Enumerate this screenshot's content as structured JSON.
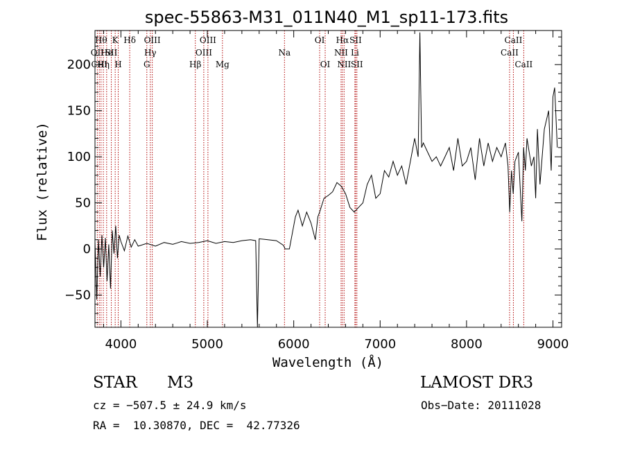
{
  "chart_data": {
    "type": "line",
    "title": "spec-55863-M31_011N40_M1_sp11-173.fits",
    "xlabel": "Wavelength (Å)",
    "ylabel": "Flux (relative)",
    "xlim": [
      3700,
      9100
    ],
    "ylim": [
      -85,
      237
    ],
    "x_ticks": [
      4000,
      5000,
      6000,
      7000,
      8000,
      9000
    ],
    "y_ticks": [
      -50,
      0,
      50,
      100,
      150,
      200
    ],
    "grid": false,
    "series": [
      {
        "color": "#000000",
        "x": [
          3700,
          3720,
          3740,
          3760,
          3780,
          3800,
          3820,
          3840,
          3860,
          3880,
          3900,
          3920,
          3940,
          3960,
          3980,
          4000,
          4040,
          4080,
          4120,
          4160,
          4200,
          4300,
          4400,
          4500,
          4600,
          4700,
          4800,
          4900,
          5000,
          5100,
          5200,
          5300,
          5400,
          5500,
          5560,
          5580,
          5600,
          5700,
          5800,
          5880,
          5900,
          5950,
          6000,
          6020,
          6050,
          6080,
          6100,
          6150,
          6200,
          6250,
          6280,
          6300,
          6350,
          6400,
          6450,
          6500,
          6550,
          6600,
          6650,
          6700,
          6750,
          6800,
          6850,
          6900,
          6950,
          7000,
          7050,
          7100,
          7150,
          7200,
          7250,
          7300,
          7350,
          7400,
          7440,
          7460,
          7480,
          7500,
          7550,
          7600,
          7650,
          7700,
          7750,
          7800,
          7850,
          7900,
          7950,
          8000,
          8050,
          8100,
          8150,
          8200,
          8250,
          8300,
          8350,
          8400,
          8450,
          8480,
          8500,
          8520,
          8540,
          8560,
          8600,
          8640,
          8660,
          8680,
          8700,
          8750,
          8780,
          8800,
          8820,
          8850,
          8900,
          8950,
          8980,
          9000,
          9020,
          9050
        ],
        "y": [
          8,
          -55,
          10,
          -30,
          15,
          -20,
          12,
          -35,
          5,
          -43,
          20,
          -5,
          25,
          -10,
          15,
          8,
          -2,
          14,
          2,
          10,
          3,
          6,
          3,
          7,
          5,
          8,
          6,
          7,
          9,
          6,
          8,
          7,
          9,
          10,
          9,
          -85,
          11,
          10,
          9,
          4,
          0,
          0,
          25,
          35,
          42,
          32,
          25,
          40,
          28,
          10,
          35,
          40,
          55,
          58,
          62,
          72,
          68,
          60,
          45,
          40,
          45,
          50,
          70,
          80,
          55,
          60,
          85,
          78,
          95,
          80,
          90,
          70,
          95,
          120,
          100,
          235,
          110,
          115,
          105,
          95,
          100,
          90,
          100,
          110,
          85,
          120,
          90,
          95,
          110,
          75,
          120,
          90,
          115,
          95,
          110,
          100,
          115,
          90,
          40,
          85,
          60,
          95,
          105,
          30,
          110,
          85,
          120,
          90,
          100,
          55,
          130,
          70,
          130,
          150,
          85,
          165,
          175,
          110
        ]
      }
    ],
    "spectral_lines": [
      {
        "wavelength": 3727,
        "labels": [
          "OII"
        ],
        "rows": [
          1
        ]
      },
      {
        "wavelength": 3750,
        "labels": [
          "CIII"
        ],
        "rows": [
          2
        ]
      },
      {
        "wavelength": 3770,
        "labels": [
          "Hθ"
        ],
        "rows": [
          0
        ]
      },
      {
        "wavelength": 3797,
        "labels": [
          "Hη"
        ],
        "rows": [
          2
        ]
      },
      {
        "wavelength": 3835,
        "labels": [
          "He"
        ],
        "rows": [
          1
        ]
      },
      {
        "wavelength": 3889,
        "labels": [
          "SII"
        ],
        "rows": [
          1
        ]
      },
      {
        "wavelength": 3934,
        "labels": [
          "K"
        ],
        "rows": [
          0
        ]
      },
      {
        "wavelength": 3969,
        "labels": [
          "H"
        ],
        "rows": [
          2
        ]
      },
      {
        "wavelength": 4102,
        "labels": [
          "Hδ"
        ],
        "rows": [
          0
        ]
      },
      {
        "wavelength": 4300,
        "labels": [
          "G"
        ],
        "rows": [
          2
        ]
      },
      {
        "wavelength": 4340,
        "labels": [
          "Hγ"
        ],
        "rows": [
          1
        ]
      },
      {
        "wavelength": 4363,
        "labels": [
          "OIII"
        ],
        "rows": [
          0
        ]
      },
      {
        "wavelength": 4861,
        "labels": [
          "Hβ"
        ],
        "rows": [
          2
        ]
      },
      {
        "wavelength": 4959,
        "labels": [
          "OIII"
        ],
        "rows": [
          1
        ]
      },
      {
        "wavelength": 5007,
        "labels": [
          "OIII"
        ],
        "rows": [
          0
        ]
      },
      {
        "wavelength": 5175,
        "labels": [
          "Mg"
        ],
        "rows": [
          2
        ]
      },
      {
        "wavelength": 5893,
        "labels": [
          "Na"
        ],
        "rows": [
          1
        ]
      },
      {
        "wavelength": 6300,
        "labels": [
          "OI"
        ],
        "rows": [
          0
        ]
      },
      {
        "wavelength": 6364,
        "labels": [
          "OI"
        ],
        "rows": [
          2
        ]
      },
      {
        "wavelength": 6548,
        "labels": [
          "NII"
        ],
        "rows": [
          1
        ]
      },
      {
        "wavelength": 6563,
        "labels": [
          "Hα"
        ],
        "rows": [
          0
        ]
      },
      {
        "wavelength": 6583,
        "labels": [
          "NII"
        ],
        "rows": [
          2
        ]
      },
      {
        "wavelength": 6708,
        "labels": [
          "Li"
        ],
        "rows": [
          1
        ]
      },
      {
        "wavelength": 6716,
        "labels": [
          "SII"
        ],
        "rows": [
          0
        ]
      },
      {
        "wavelength": 6731,
        "labels": [
          "SII"
        ],
        "rows": [
          2
        ]
      },
      {
        "wavelength": 8498,
        "labels": [
          "CaII"
        ],
        "rows": [
          1
        ]
      },
      {
        "wavelength": 8542,
        "labels": [
          "CaII"
        ],
        "rows": [
          0
        ]
      },
      {
        "wavelength": 8662,
        "labels": [
          "CaII"
        ],
        "rows": [
          2
        ]
      }
    ],
    "line_color": "#b00000"
  },
  "info": {
    "class": "STAR",
    "subclass": "M3",
    "survey": "LAMOST DR3",
    "cz": "cz = −507.5 ± 24.9 km/s",
    "obs_date": "Obs−Date: 20111028",
    "coords": "RA =  10.30870, DEC =  42.77326"
  }
}
